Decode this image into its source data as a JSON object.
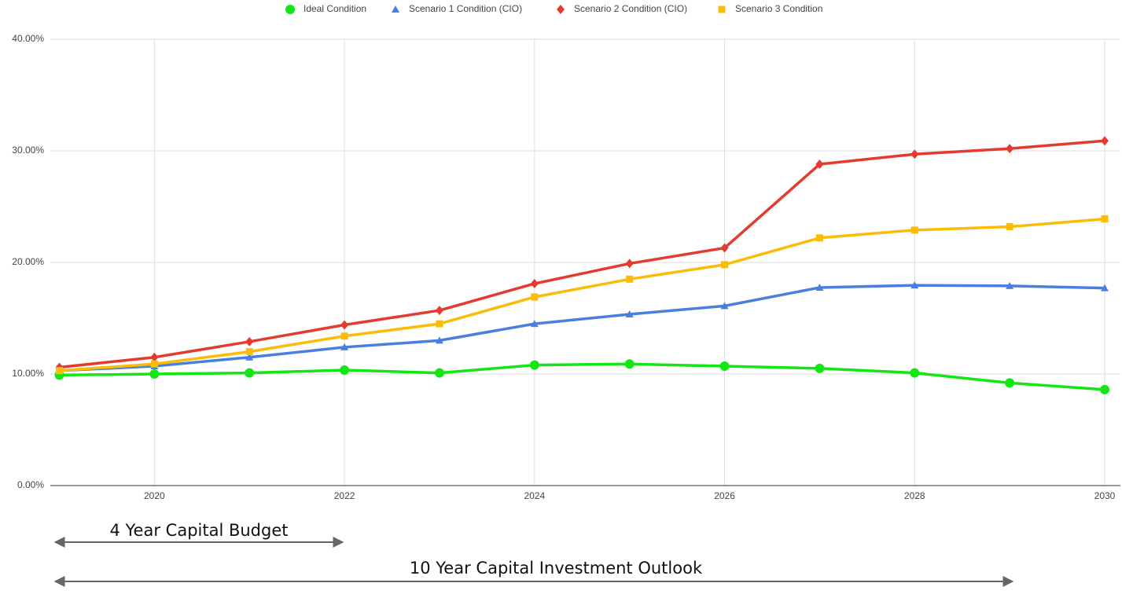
{
  "chart_data": {
    "type": "line",
    "x": [
      2019,
      2020,
      2021,
      2022,
      2023,
      2024,
      2025,
      2026,
      2027,
      2028,
      2029,
      2030
    ],
    "series": [
      {
        "name": "Ideal Condition",
        "color": "#14e614",
        "marker": "circle",
        "values": [
          9.9,
          10.0,
          10.1,
          10.35,
          10.1,
          10.8,
          10.9,
          10.7,
          10.5,
          10.1,
          9.2,
          8.6
        ]
      },
      {
        "name": "Scenario 1 Condition (CIO)",
        "color": "#4a7fe0",
        "marker": "triangle",
        "values": [
          10.3,
          10.7,
          11.5,
          12.4,
          13.0,
          14.5,
          15.35,
          16.1,
          17.75,
          17.95,
          17.9,
          17.7
        ]
      },
      {
        "name": "Scenario 2 Condition (CIO)",
        "color": "#e53a2f",
        "marker": "diamond",
        "values": [
          10.6,
          11.5,
          12.9,
          14.4,
          15.7,
          18.1,
          19.9,
          21.3,
          28.8,
          29.7,
          30.2,
          30.9
        ]
      },
      {
        "name": "Scenario 3 Condition",
        "color": "#fbbc05",
        "marker": "square",
        "values": [
          10.3,
          10.9,
          12.0,
          13.4,
          14.5,
          16.9,
          18.5,
          19.8,
          22.2,
          22.9,
          23.2,
          23.9
        ]
      }
    ],
    "xlim": [
      2019,
      2030
    ],
    "xticks": [
      2020,
      2022,
      2024,
      2026,
      2028,
      2030
    ],
    "ylim": [
      0,
      40
    ],
    "yticks": [
      {
        "value": 0,
        "label": "0.00%"
      },
      {
        "value": 10,
        "label": "10.00%"
      },
      {
        "value": 20,
        "label": "20.00%"
      },
      {
        "value": 30,
        "label": "30.00%"
      },
      {
        "value": 40,
        "label": "40.00%"
      }
    ],
    "grid": true,
    "legend": "top",
    "annotations": [
      "4 Year Capital Budget",
      "10 Year Capital Investment Outlook"
    ]
  }
}
